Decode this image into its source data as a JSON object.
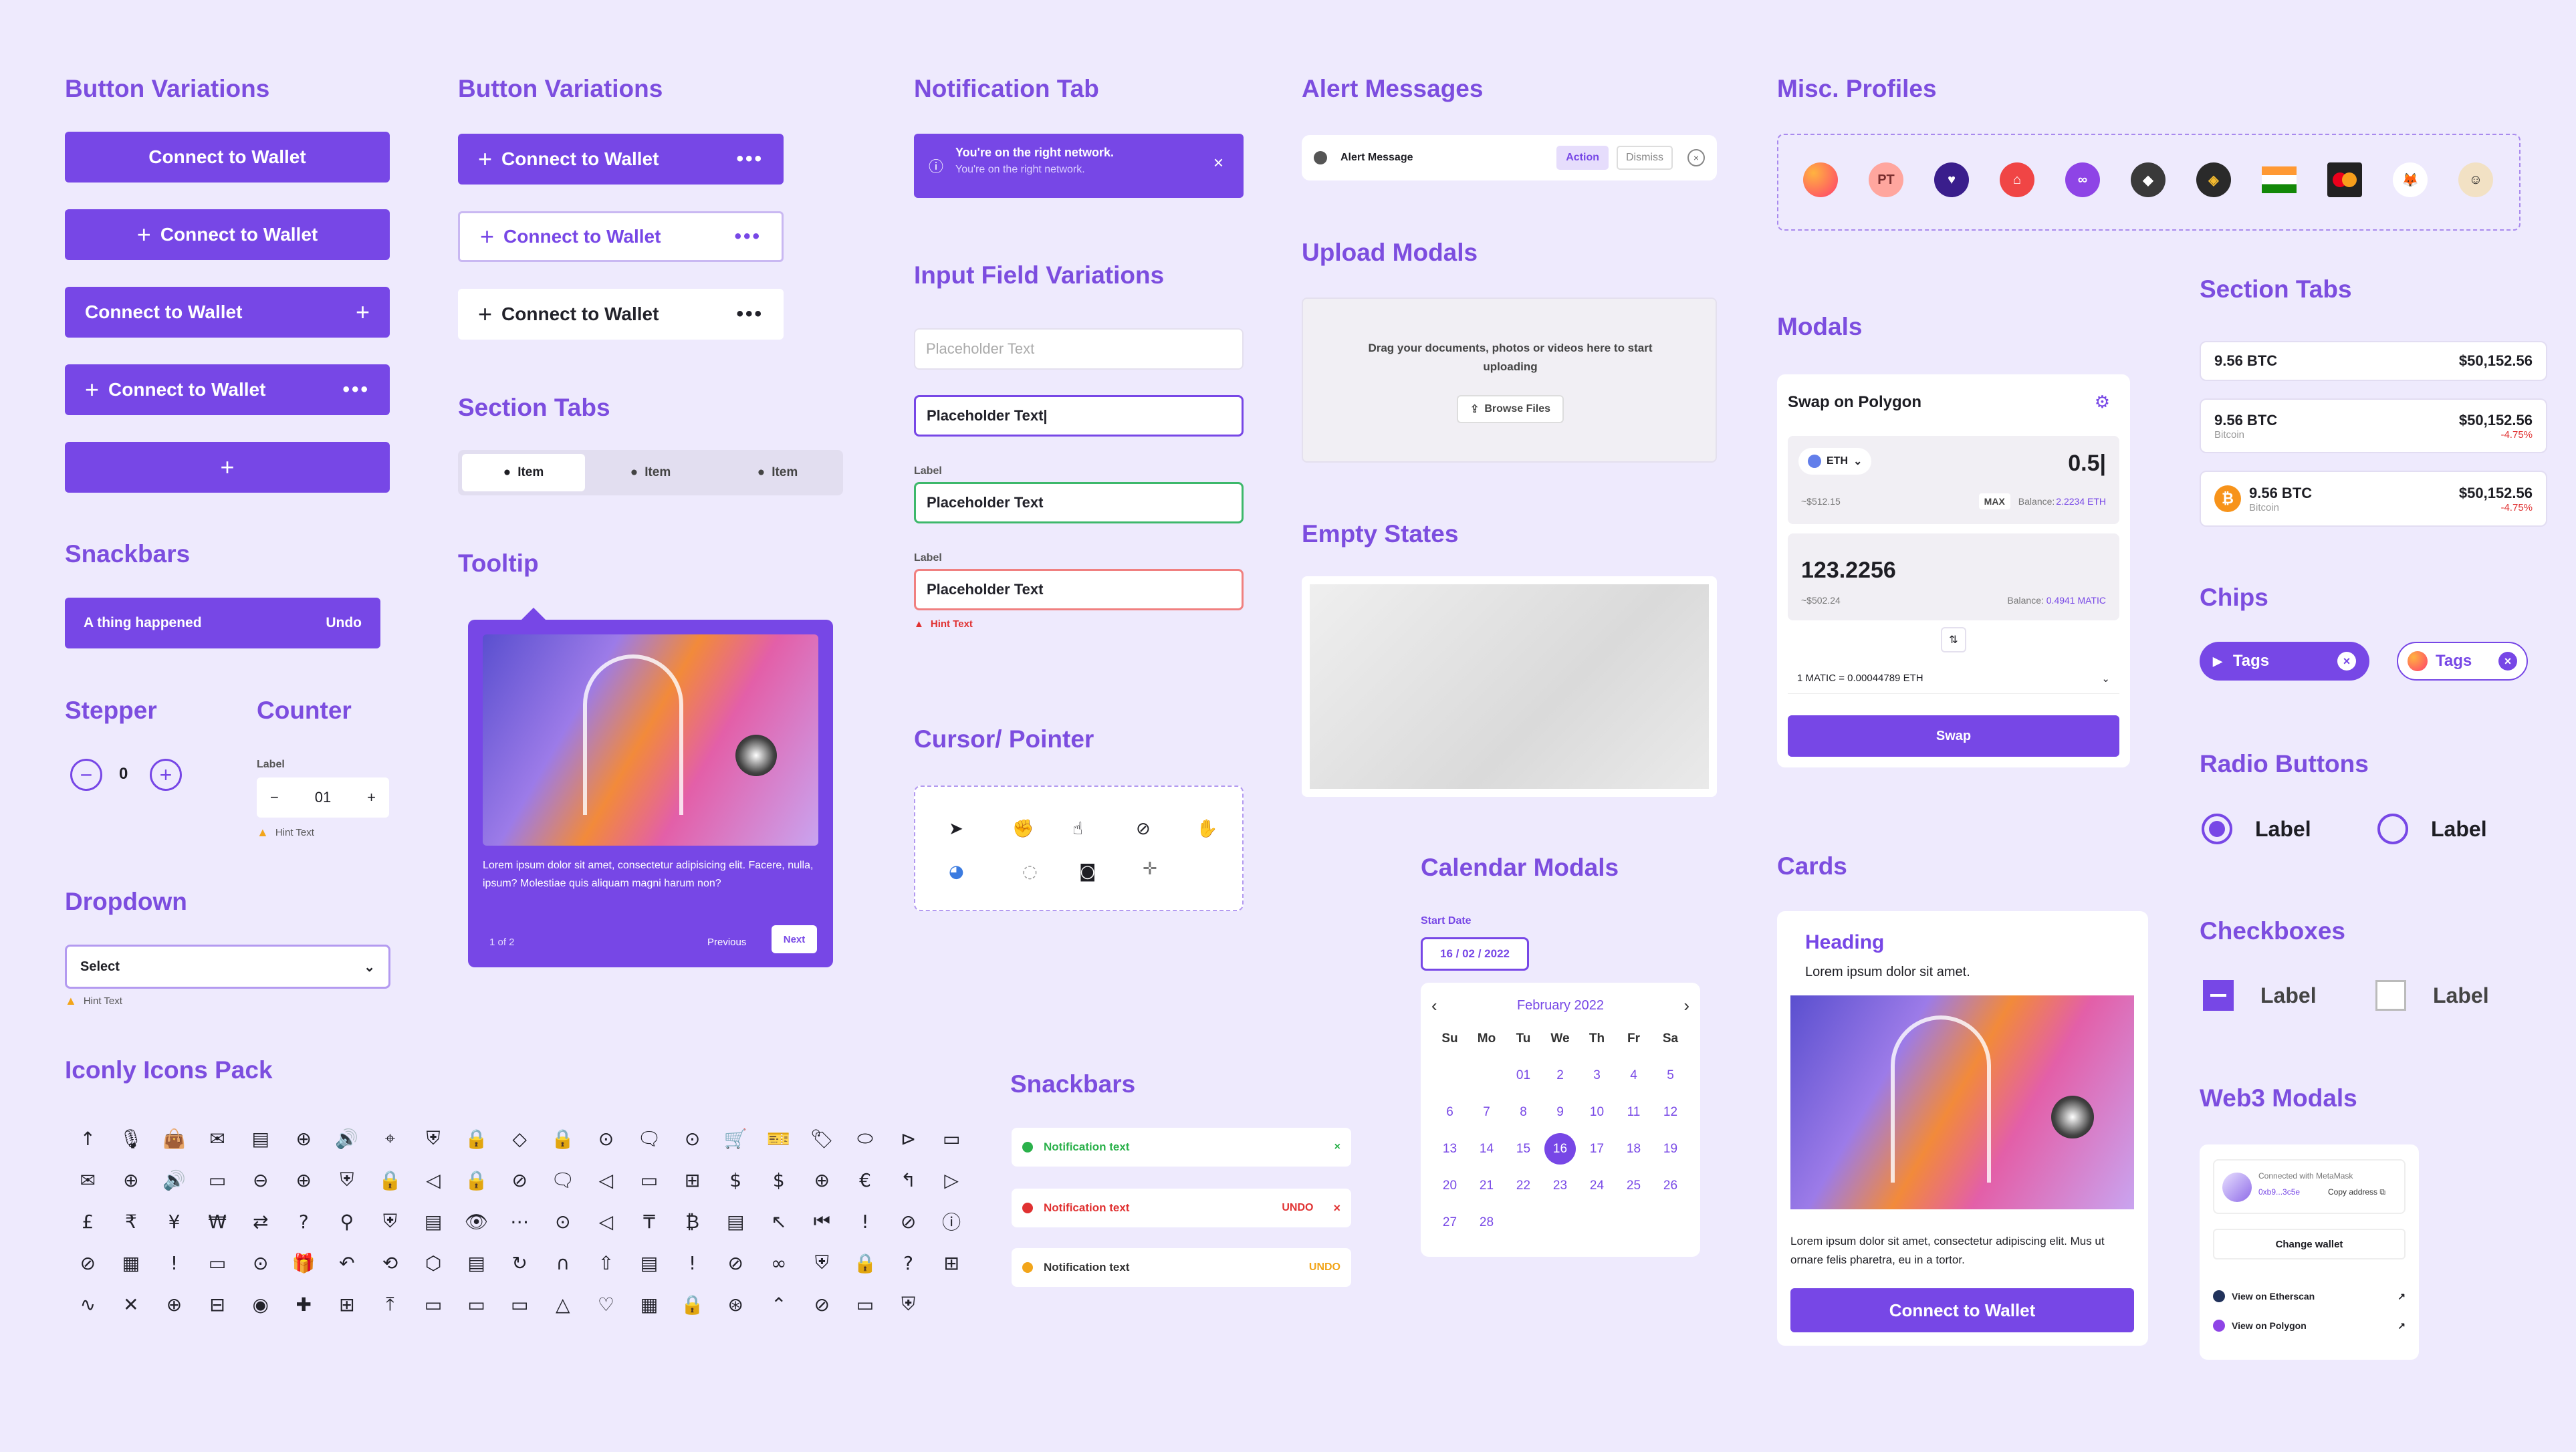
{
  "colors": {
    "accent": "#7747E6",
    "bg": "#EEEAFD",
    "success": "#2BB14B",
    "error": "#E03131",
    "warning": "#F2A51A"
  },
  "headings": {
    "button_variations": "Button Variations",
    "button_variations_2": "Button Variations",
    "notification_tab": "Notification Tab",
    "alert_messages": "Alert Messages",
    "misc_profiles": "Misc. Profiles",
    "snackbars": "Snackbars",
    "stepper": "Stepper",
    "counter": "Counter",
    "dropdown": "Dropdown",
    "iconly": "Iconly Icons Pack",
    "section_tabs": "Section Tabs",
    "tooltip": "Tooltip",
    "input_fields": "Input Field Variations",
    "cursor": "Cursor/ Pointer",
    "snackbars_2": "Snackbars",
    "upload_modals": "Upload Modals",
    "empty_states": "Empty States",
    "calendar_modals": "Calendar Modals",
    "modals": "Modals",
    "cards": "Cards",
    "section_tabs_2": "Section Tabs",
    "chips": "Chips",
    "radio_buttons": "Radio Buttons",
    "checkboxes": "Checkboxes",
    "web3_modals": "Web3 Modals"
  },
  "buttons": {
    "connect": "Connect to Wallet",
    "plus": "+",
    "dots": "•••"
  },
  "snackbar": {
    "text": "A thing happened",
    "action": "Undo"
  },
  "stepper": {
    "value": "0",
    "minus": "−",
    "plus": "+"
  },
  "counter": {
    "label": "Label",
    "value": "01",
    "minus": "−",
    "plus": "+",
    "hint": "Hint Text"
  },
  "dropdown": {
    "value": "Select",
    "hint": "Hint Text"
  },
  "section_tabs": {
    "items": [
      "Item",
      "Item",
      "Item"
    ]
  },
  "tooltip": {
    "body": "Lorem ipsum dolor sit amet, consectetur adipisicing elit. Facere, nulla, ipsum? Molestiae quis aliquam magni harum non?",
    "pager": "1 of 2",
    "previous": "Previous",
    "next": "Next"
  },
  "notification": {
    "title": "You're on the right network.",
    "sub": "You're on the right network.",
    "close": "×"
  },
  "inputs": {
    "placeholder": "Placeholder Text",
    "typed": "Placeholder Text|",
    "label": "Label",
    "hint": "Hint Text"
  },
  "snackbars2": [
    {
      "text": "Notification text",
      "action": "×"
    },
    {
      "text": "Notification text",
      "action": "UNDO",
      "close": "×"
    },
    {
      "text": "Notification text",
      "action": "UNDO"
    }
  ],
  "alert": {
    "text": "Alert Message",
    "action": "Action",
    "dismiss": "Dismiss"
  },
  "upload": {
    "text": "Drag your documents, photos or videos here to start uploading",
    "button": "Browse Files"
  },
  "calendar": {
    "label": "Start Date",
    "value": "16 / 02 / 2022",
    "month": "February 2022",
    "days": [
      "Su",
      "Mo",
      "Tu",
      "We",
      "Th",
      "Fr",
      "Sa"
    ],
    "dates": [
      "",
      "",
      "01",
      "2",
      "3",
      "4",
      "5",
      "6",
      "7",
      "8",
      "9",
      "10",
      "11",
      "12",
      "13",
      "14",
      "15",
      "16",
      "17",
      "18",
      "19",
      "20",
      "21",
      "22",
      "23",
      "24",
      "25",
      "26",
      "27",
      "28"
    ],
    "selected": "16"
  },
  "profiles": {
    "pt": "PT"
  },
  "swap": {
    "title": "Swap on Polygon",
    "token": "ETH",
    "amount": "0.5|",
    "usd1": "~$512.15",
    "max": "MAX",
    "bal1": "Balance: ",
    "bal1v": "2.2234 ETH",
    "amount2": "123.2256",
    "usd2": "~$502.24",
    "bal2": "Balance: ",
    "bal2v": "0.4941 MATIC",
    "rate": "1 MATIC = 0.00044789 ETH",
    "button": "Swap"
  },
  "card": {
    "heading": "Heading",
    "sub": "Lorem ipsum dolor sit amet.",
    "body": "Lorem ipsum dolor sit amet, consectetur adipiscing elit. Mus ut ornare felis pharetra, eu in a tortor.",
    "button": "Connect to Wallet"
  },
  "section_tabs2": [
    {
      "left": "9.56 BTC",
      "right": "$50,152.56"
    },
    {
      "left": "9.56 BTC",
      "sub": "Bitcoin",
      "right": "$50,152.56",
      "change": "-4.75%"
    },
    {
      "left": "9.56 BTC",
      "sub": "Bitcoin",
      "right": "$50,152.56",
      "change": "-4.75%"
    }
  ],
  "chips": [
    "Tags",
    "Tags"
  ],
  "radio": [
    "Label",
    "Label"
  ],
  "checkbox": [
    "Label",
    "Label"
  ],
  "web3": {
    "connected": "Connected with MetaMask",
    "address": "0xb9...3c5e",
    "copy": "Copy address",
    "change": "Change wallet",
    "etherscan": "View on Etherscan",
    "polygon": "View on Polygon"
  },
  "icons": [
    "↑",
    "🎙",
    "👜",
    "✉",
    "▤",
    "⊕",
    "🔊",
    "⌖",
    "⛨",
    "🔒",
    "◇",
    "🔒",
    "⊙",
    "🗨",
    "⊙",
    "🛒",
    "🎫",
    "🏷",
    "⬭",
    "⊳",
    "▭",
    "✉",
    "⊕",
    "🔊",
    "▭",
    "⊖",
    "⊕",
    "⛨",
    "🔒",
    "◁",
    "🔒",
    "⊘",
    "🗨",
    "◁",
    "▭",
    "⊞",
    "$",
    "$",
    "⊕",
    "€",
    "↰",
    "▷",
    "£",
    "₹",
    "¥",
    "₩",
    "⇄",
    "?",
    "⚲",
    "⛨",
    "▤",
    "👁",
    "⋯",
    "⊙",
    "◁",
    "₸",
    "₿",
    "▤",
    "↖",
    "⏮",
    "!",
    "⊘",
    "ⓘ",
    "⊘",
    "▦",
    "!",
    "▭",
    "⊙",
    "🎁",
    "↶",
    "⟲",
    "⬡",
    "▤",
    "↻",
    "∩",
    "⇧",
    "▤",
    "!",
    "⊘",
    "∞",
    "⛨",
    "🔒",
    "?",
    "⊞",
    "∿",
    "✕",
    "⊕",
    "⊟",
    "◉",
    "✚",
    "⊞",
    "⤒",
    "▭",
    "▭",
    "▭",
    "△",
    "♡",
    "▦",
    "🔒",
    "⊛",
    "⌃",
    "⊘",
    "▭",
    "⛨"
  ]
}
